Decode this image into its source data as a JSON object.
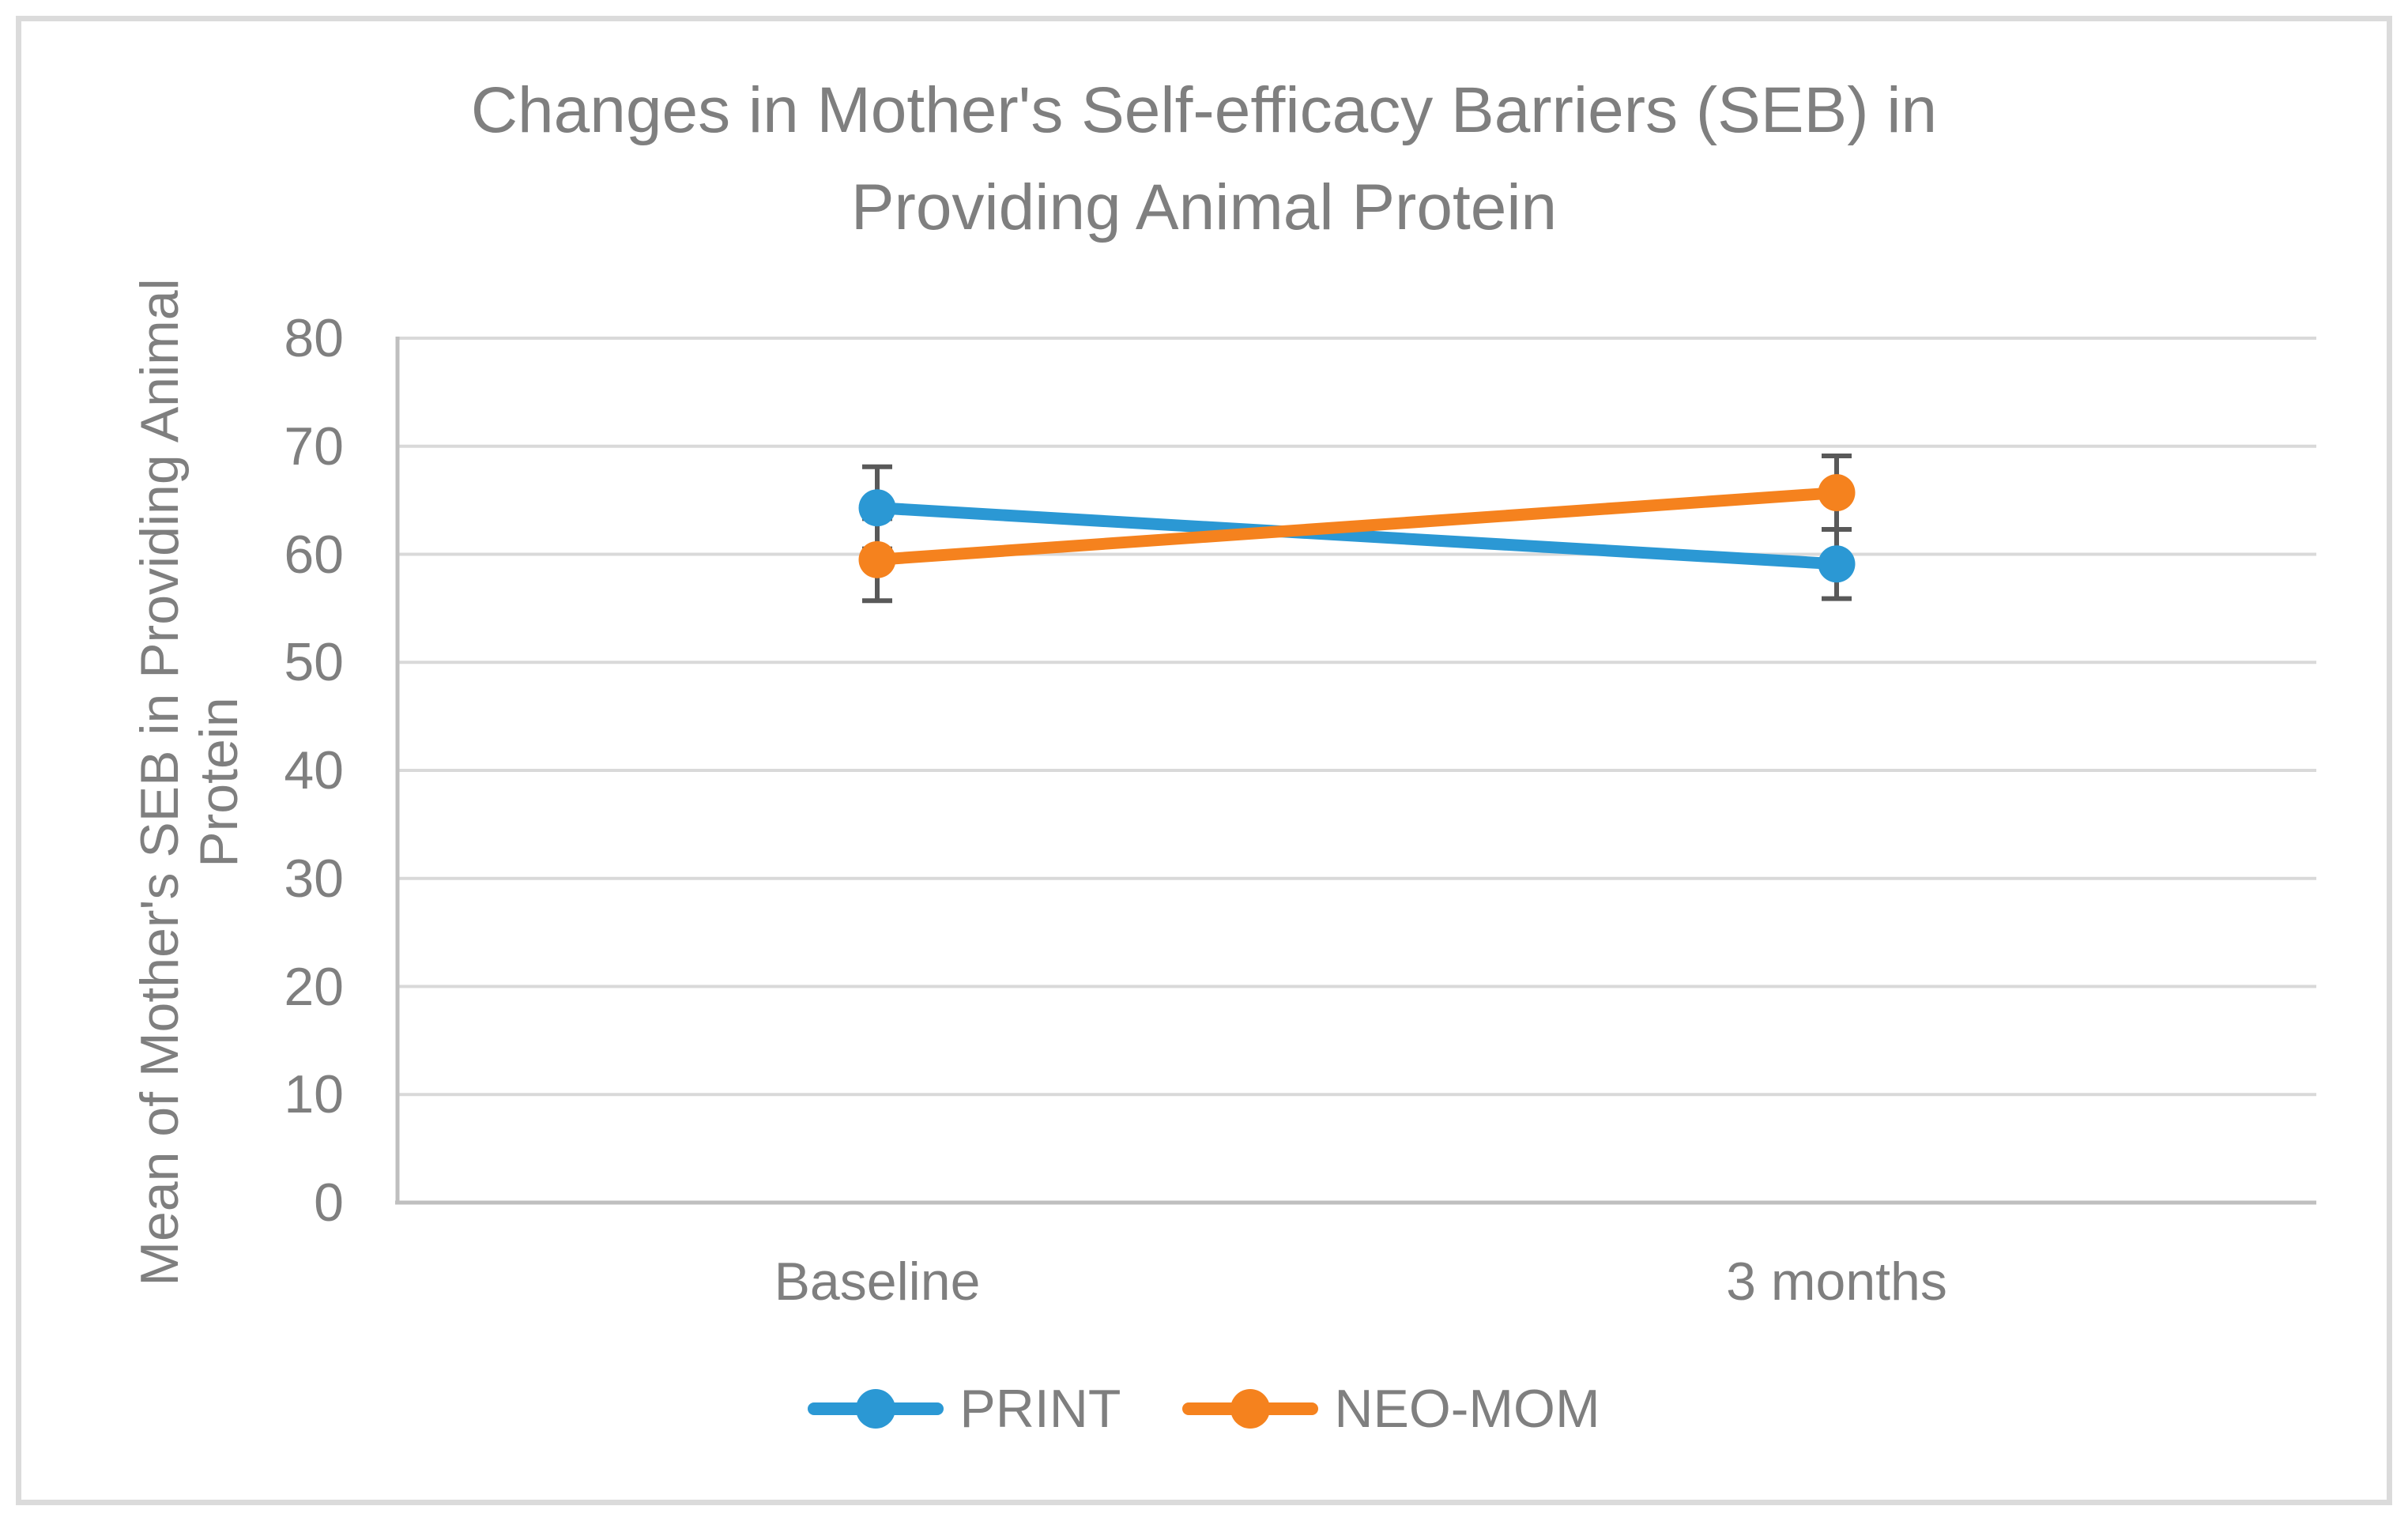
{
  "figure": {
    "title_line1": "Changes in Mother's Self-efficacy Barriers (SEB) in",
    "title_line2": "Providing Animal Protein",
    "ylabel_line1": "Mean of Mother's SEB in Providing Animal",
    "ylabel_line2": "Protein"
  },
  "chart_data": {
    "type": "line",
    "title": "Changes in Mother's Self-efficacy Barriers (SEB) in Providing Animal Protein",
    "categories": [
      "Baseline",
      "3 months"
    ],
    "series": [
      {
        "name": "PRINT",
        "color": "#2b98d4",
        "values": [
          64.3,
          59.1
        ],
        "error_bars": [
          3.8,
          3.2
        ]
      },
      {
        "name": "NEO-MOM",
        "color": "#f5821e",
        "values": [
          59.5,
          65.7
        ],
        "error_bars": [
          3.8,
          3.4
        ]
      }
    ],
    "xlabel": "",
    "ylabel": "Mean of Mother's SEB in Providing Animal Protein",
    "ylim": [
      0,
      80
    ],
    "yticks": [
      0,
      10,
      20,
      30,
      40,
      50,
      60,
      70,
      80
    ],
    "grid": true,
    "legend_position": "bottom",
    "markers": "circle",
    "error_bars_shown": true
  },
  "colors": {
    "text_gray": "#7f7f7f",
    "gridline": "#d9d9d9",
    "axis_line": "#bfbfbf",
    "error_bar": "#595959",
    "figure_border": "#dbdbdb",
    "background": "#ffffff"
  }
}
